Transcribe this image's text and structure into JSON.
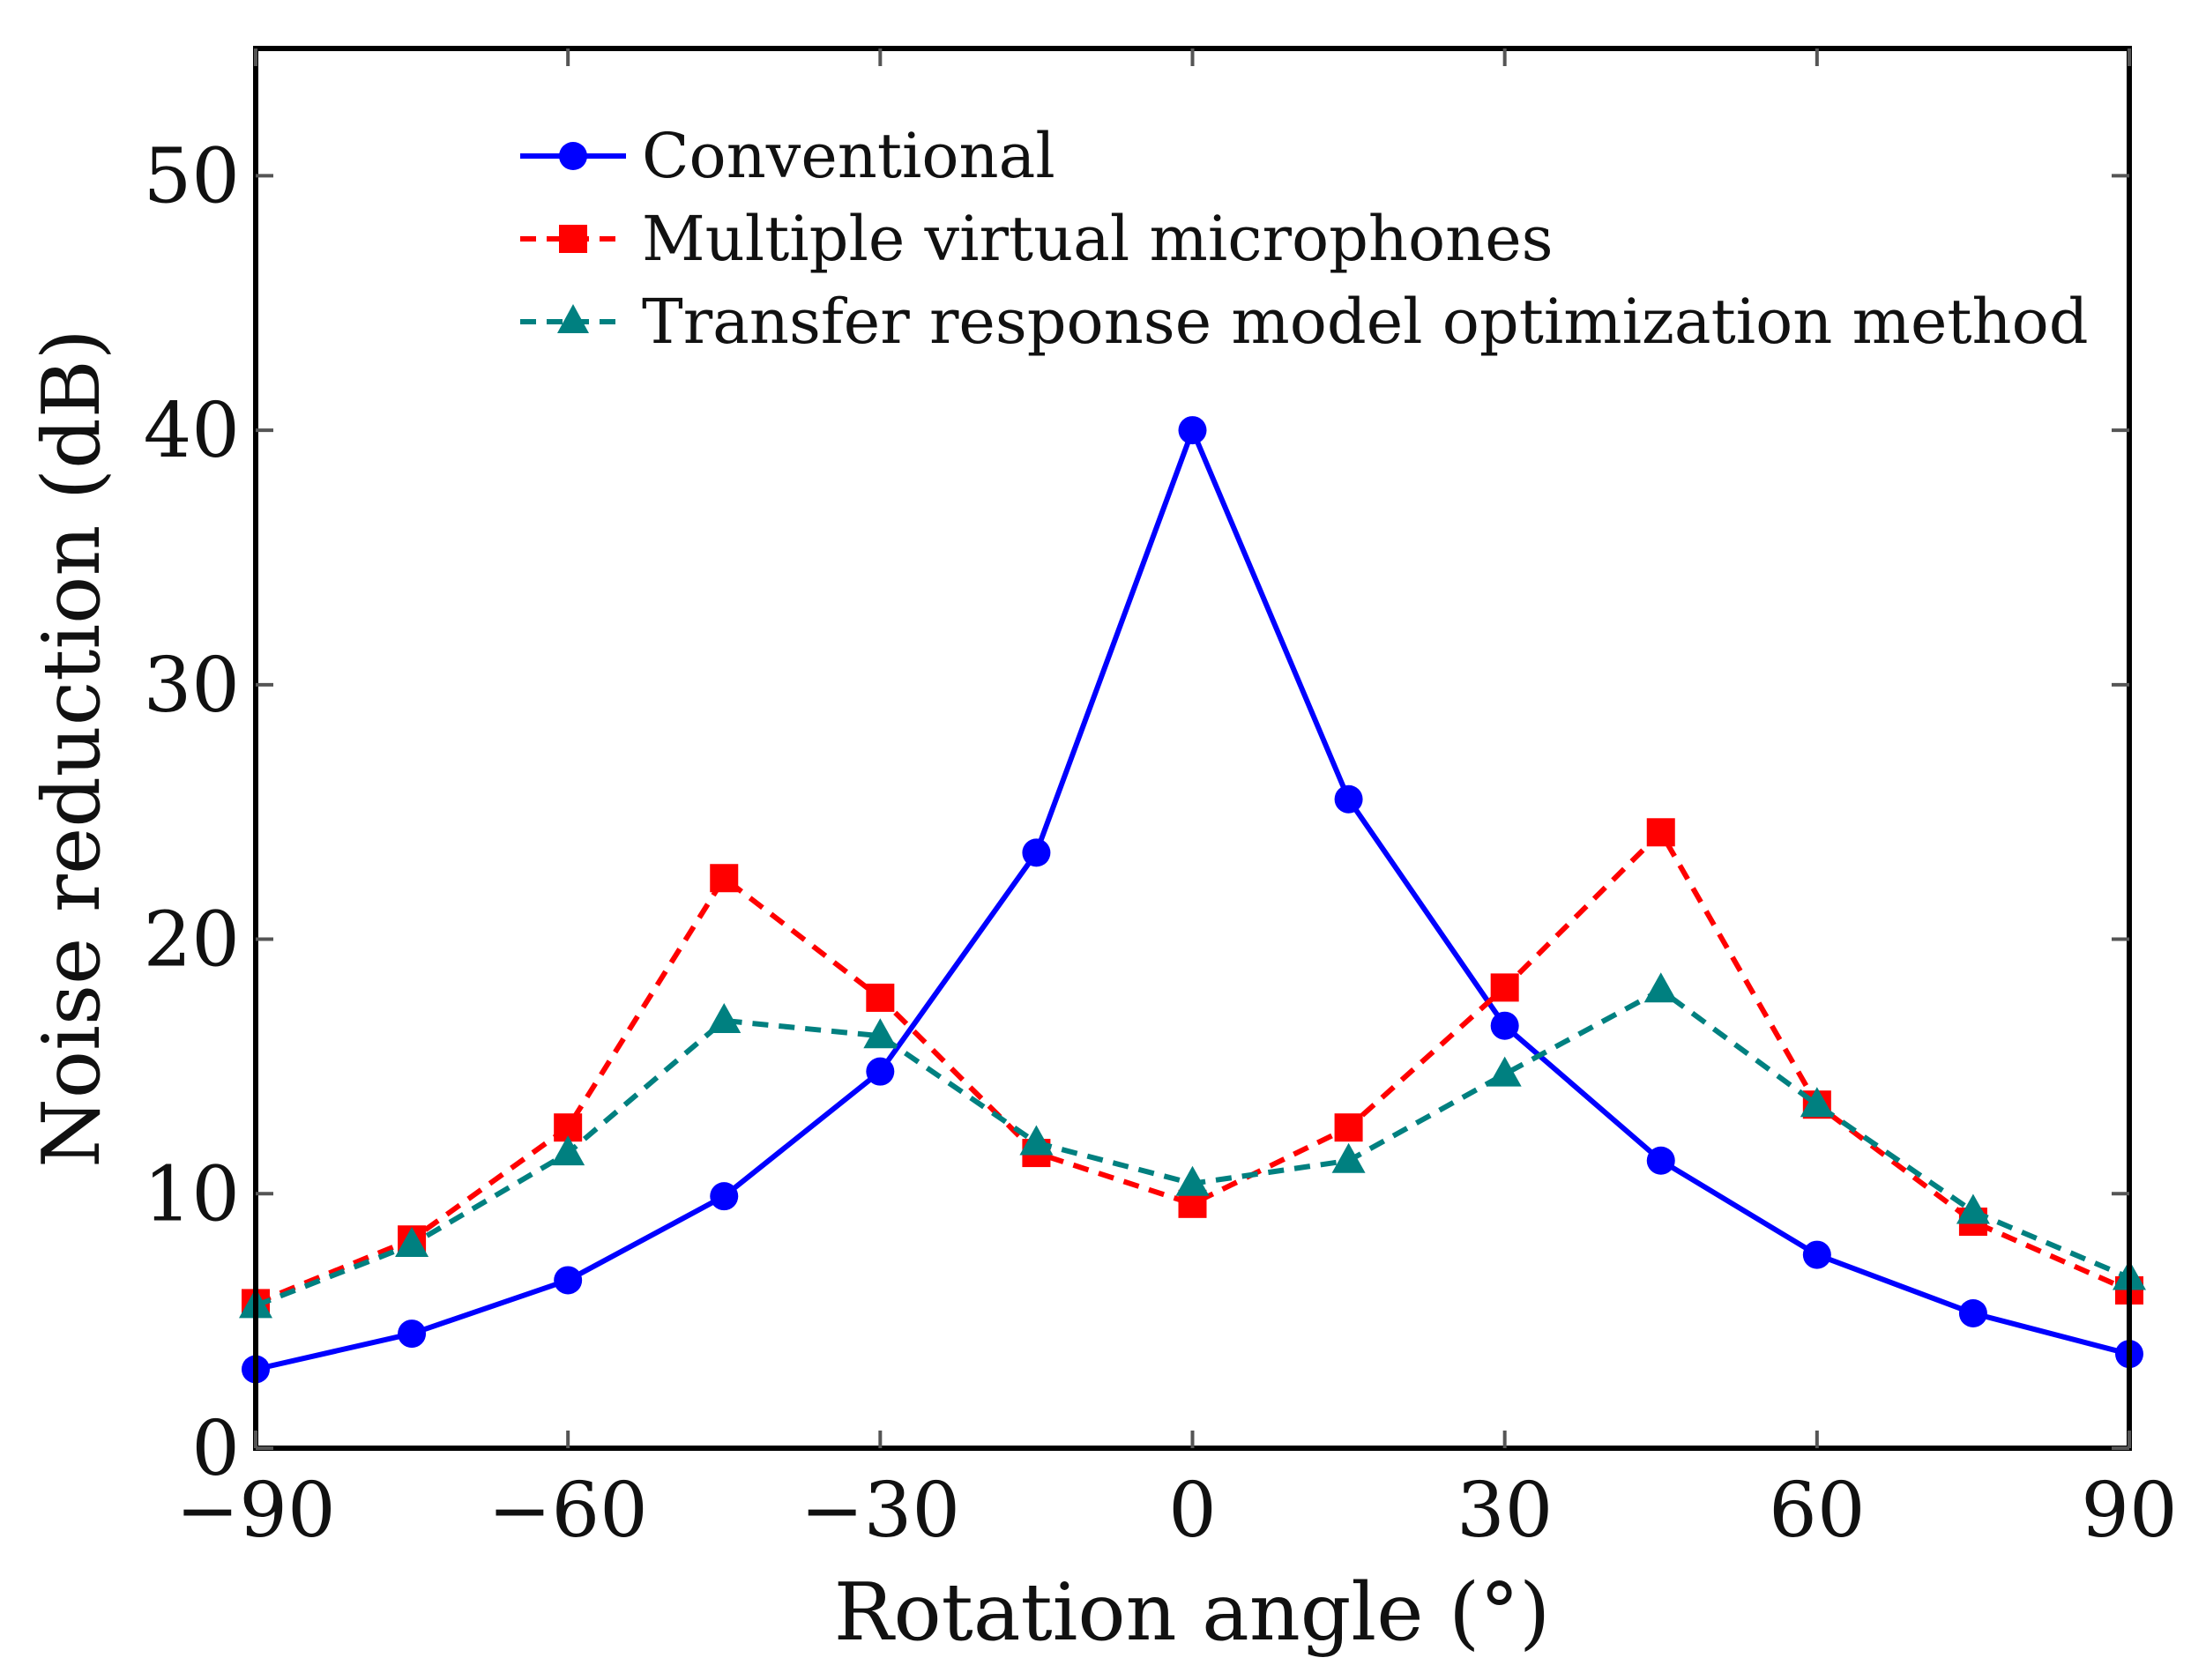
{
  "chart_data": {
    "type": "line",
    "title": "",
    "xlabel": "Rotation angle (°)",
    "ylabel": "Noise reduction (dB)",
    "xlim": [
      -90,
      90
    ],
    "ylim": [
      0,
      55
    ],
    "xticks": [
      -90,
      -60,
      -30,
      0,
      30,
      60,
      90
    ],
    "xtick_labels": [
      "−90",
      "−60",
      "−30",
      "0",
      "30",
      "60",
      "90"
    ],
    "yticks": [
      0,
      10,
      20,
      30,
      40,
      50
    ],
    "ytick_labels": [
      "0",
      "10",
      "20",
      "30",
      "40",
      "50"
    ],
    "grid": false,
    "legend_position": "top-right",
    "x": [
      -90,
      -75,
      -60,
      -45,
      -30,
      -15,
      0,
      15,
      30,
      45,
      60,
      75,
      90
    ],
    "series": [
      {
        "name": "Conventional",
        "color": "#0000ff",
        "marker": "circle",
        "linestyle": "solid",
        "values": [
          3.1,
          4.5,
          6.6,
          9.9,
          14.8,
          23.4,
          40.0,
          25.5,
          16.6,
          11.3,
          7.6,
          5.3,
          3.7
        ]
      },
      {
        "name": "Multiple virtual microphones",
        "color": "#ff0000",
        "marker": "square",
        "linestyle": "dashed",
        "values": [
          5.7,
          8.2,
          12.6,
          22.4,
          17.7,
          11.6,
          9.6,
          12.6,
          18.1,
          24.2,
          13.5,
          8.9,
          6.2
        ]
      },
      {
        "name": "Transfer response model optimization method",
        "color": "#008080",
        "marker": "triangle",
        "linestyle": "dashed",
        "values": [
          5.6,
          8.0,
          11.6,
          16.8,
          16.2,
          12.0,
          10.4,
          11.3,
          14.7,
          18.0,
          13.5,
          9.3,
          6.7
        ]
      }
    ]
  }
}
